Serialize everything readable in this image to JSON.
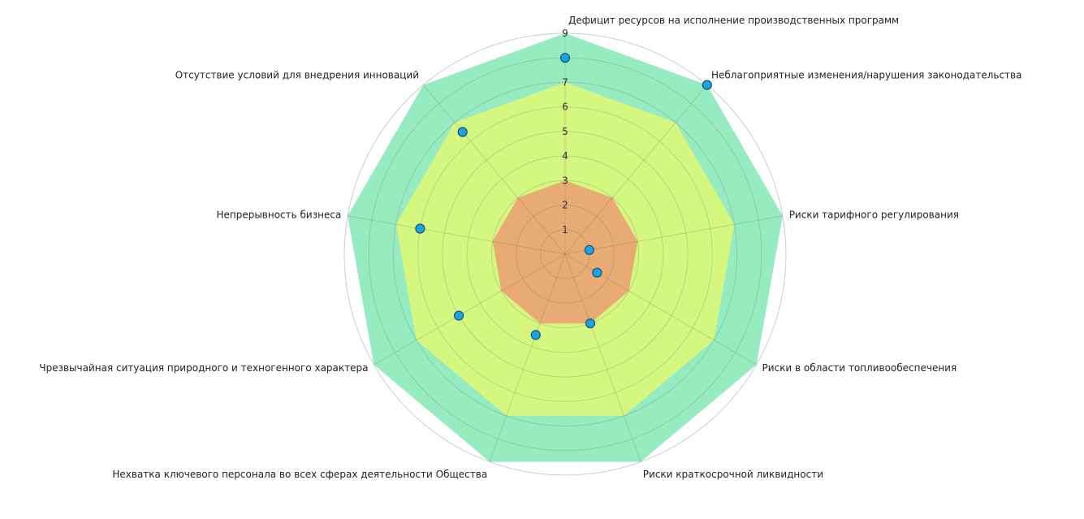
{
  "chart_data": {
    "type": "radar",
    "title": "",
    "r_min": 0,
    "r_max": 9,
    "tick_labels": [
      "1",
      "2",
      "3",
      "4",
      "5",
      "6",
      "7",
      "8",
      "9"
    ],
    "categories": [
      "Дефицит ресурсов на исполнение производственных программ",
      "Неблагоприятные изменения/нарушения законодательства",
      "Риски тарифного регулирования",
      "Риски в области топливообеспечения",
      "Риски краткосрочной ликвидности",
      "Нехватка ключевого персонала во всех сферах деятельности Общества",
      "Чрезвычайная ситуация природного и техногенного характера",
      "Непрерывность бизнеса",
      "Отсутствие условий для внедрения инноваций"
    ],
    "zones": [
      {
        "upper": 9,
        "color": "#97ebc1"
      },
      {
        "upper": 7,
        "color": "#d5f77f"
      },
      {
        "upper": 3,
        "color": "#e9ab74"
      }
    ],
    "series": [
      {
        "values": [
          8,
          9,
          1,
          1.5,
          3,
          3.5,
          5,
          6,
          6.5
        ],
        "marker_color": "#1ba3e0"
      }
    ],
    "grid": true
  }
}
